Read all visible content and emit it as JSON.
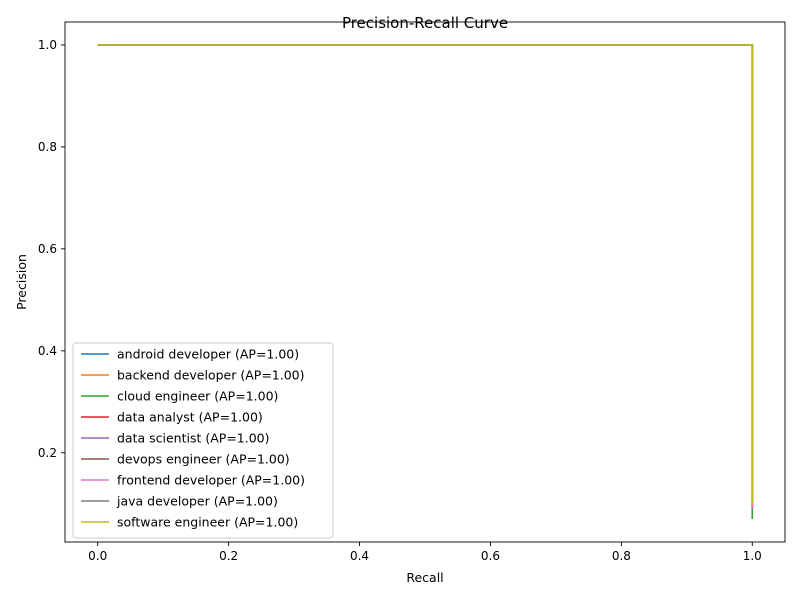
{
  "chart_data": {
    "type": "line",
    "title": "Precision-Recall Curve",
    "xlabel": "Recall",
    "ylabel": "Precision",
    "xlim": [
      -0.05,
      1.05
    ],
    "ylim": [
      0.025,
      1.045
    ],
    "xticks": [
      0.0,
      0.2,
      0.4,
      0.6,
      0.8,
      1.0
    ],
    "xtick_labels": [
      "0.0",
      "0.2",
      "0.4",
      "0.6",
      "0.8",
      "1.0"
    ],
    "yticks": [
      0.2,
      0.4,
      0.6,
      0.8,
      1.0
    ],
    "ytick_labels": [
      "0.2",
      "0.4",
      "0.6",
      "0.8",
      "1.0"
    ],
    "grid": false,
    "legend_position": "lower-left",
    "series": [
      {
        "name": "android developer (AP=1.00)",
        "color": "#1f77b4",
        "x": [
          0.0,
          1.0,
          1.0
        ],
        "y": [
          1.0,
          1.0,
          0.09
        ]
      },
      {
        "name": "backend developer (AP=1.00)",
        "color": "#ff7f0e",
        "x": [
          0.0,
          1.0,
          1.0
        ],
        "y": [
          1.0,
          1.0,
          0.09
        ]
      },
      {
        "name": "cloud engineer (AP=1.00)",
        "color": "#2ca02c",
        "x": [
          0.0,
          1.0,
          1.0
        ],
        "y": [
          1.0,
          1.0,
          0.07
        ]
      },
      {
        "name": "data analyst (AP=1.00)",
        "color": "#d62728",
        "x": [
          0.0,
          1.0,
          1.0
        ],
        "y": [
          1.0,
          1.0,
          0.09
        ]
      },
      {
        "name": "data scientist (AP=1.00)",
        "color": "#9467bd",
        "x": [
          0.0,
          1.0,
          1.0
        ],
        "y": [
          1.0,
          1.0,
          0.09
        ]
      },
      {
        "name": "devops engineer (AP=1.00)",
        "color": "#8c564b",
        "x": [
          0.0,
          1.0,
          1.0
        ],
        "y": [
          1.0,
          1.0,
          0.09
        ]
      },
      {
        "name": "frontend developer (AP=1.00)",
        "color": "#e377c2",
        "x": [
          0.0,
          1.0,
          1.0
        ],
        "y": [
          1.0,
          1.0,
          0.09
        ]
      },
      {
        "name": "java developer (AP=1.00)",
        "color": "#7f7f7f",
        "x": [
          0.0,
          1.0,
          1.0
        ],
        "y": [
          1.0,
          1.0,
          0.1
        ]
      },
      {
        "name": "software engineer (AP=1.00)",
        "color": "#bcbd22",
        "x": [
          0.0,
          1.0,
          1.0
        ],
        "y": [
          1.0,
          1.0,
          0.1
        ]
      }
    ]
  }
}
